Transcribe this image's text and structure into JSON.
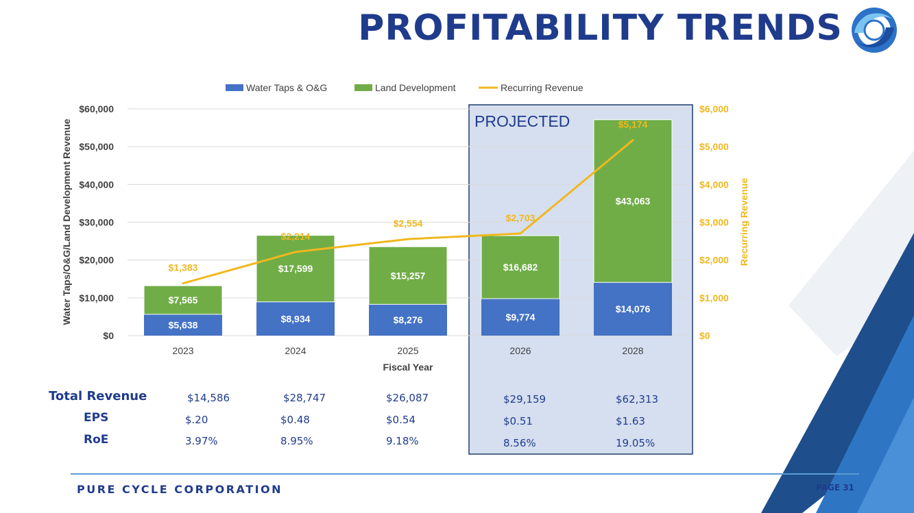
{
  "slide": {
    "title": "PROFITABILITY TRENDS",
    "footer": "PURE CYCLE CORPORATION",
    "page": "PAGE 31",
    "colors": {
      "title": "#1f3b8c",
      "water": "#4472c4",
      "land": "#70ad47",
      "recurring": "#f0b81e",
      "projected_bg": "#d6dff0",
      "projected_border": "#1f3b6c"
    }
  },
  "chart_data": {
    "type": "bar",
    "stacked": true,
    "categories": [
      "2023",
      "2024",
      "2025",
      "2026",
      "2028"
    ],
    "series": [
      {
        "name": "Water Taps & O&G",
        "kind": "bar",
        "axis": "left",
        "values": [
          5638,
          8934,
          8276,
          9774,
          14076
        ],
        "labels": [
          "$5,638",
          "$8,934",
          "$8,276",
          "$9,774",
          "$14,076"
        ]
      },
      {
        "name": "Land Development",
        "kind": "bar",
        "axis": "left",
        "values": [
          7565,
          17599,
          15257,
          16682,
          43063
        ],
        "labels": [
          "$7,565",
          "$17,599",
          "$15,257",
          "$16,682",
          "$43,063"
        ]
      },
      {
        "name": "Recurring Revenue",
        "kind": "line",
        "axis": "right",
        "values": [
          1383,
          2214,
          2554,
          2703,
          5174
        ],
        "labels": [
          "$1,383",
          "$2,214",
          "$2,554",
          "$2,703",
          "$5,174"
        ]
      }
    ],
    "xlabel": "Fiscal Year",
    "ylabel": "Water Taps/O&G/Land Development Revenue",
    "y2label": "Recurring Revenue",
    "ylim": [
      0,
      60000
    ],
    "y2lim": [
      0,
      6000
    ],
    "yticks": [
      "$0",
      "$10,000",
      "$20,000",
      "$30,000",
      "$40,000",
      "$50,000",
      "$60,000"
    ],
    "y2ticks": [
      "$0",
      "$1,000",
      "$2,000",
      "$3,000",
      "$4,000",
      "$5,000",
      "$6,000"
    ],
    "legend_position": "top",
    "projected_label": "PROJECTED",
    "projected_categories": [
      "2026",
      "2028"
    ]
  },
  "stats": {
    "labels": [
      "Total Revenue",
      "EPS",
      "RoE"
    ],
    "rows": [
      [
        "$14,586",
        "$28,747",
        "$26,087",
        "$29,159",
        "$62,313"
      ],
      [
        "$.20",
        "$0.48",
        "$0.54",
        "$0.51",
        "$1.63"
      ],
      [
        "3.97%",
        "8.95%",
        "9.18%",
        "8.56%",
        "19.05%"
      ]
    ]
  }
}
